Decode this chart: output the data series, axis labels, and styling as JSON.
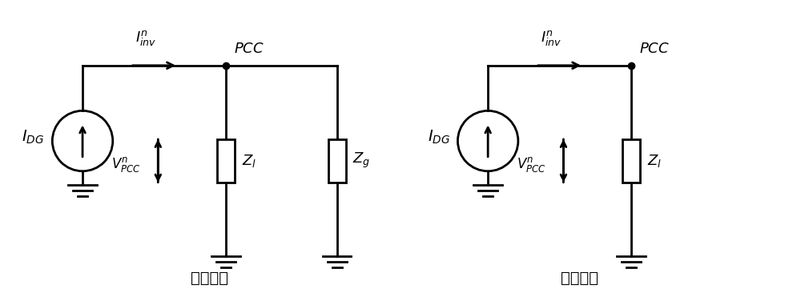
{
  "bg_color": "#ffffff",
  "line_color": "#000000",
  "line_width": 2.0,
  "label_left": "并网运行",
  "label_right": "孤岛运行",
  "fig_width": 10.0,
  "fig_height": 3.66
}
